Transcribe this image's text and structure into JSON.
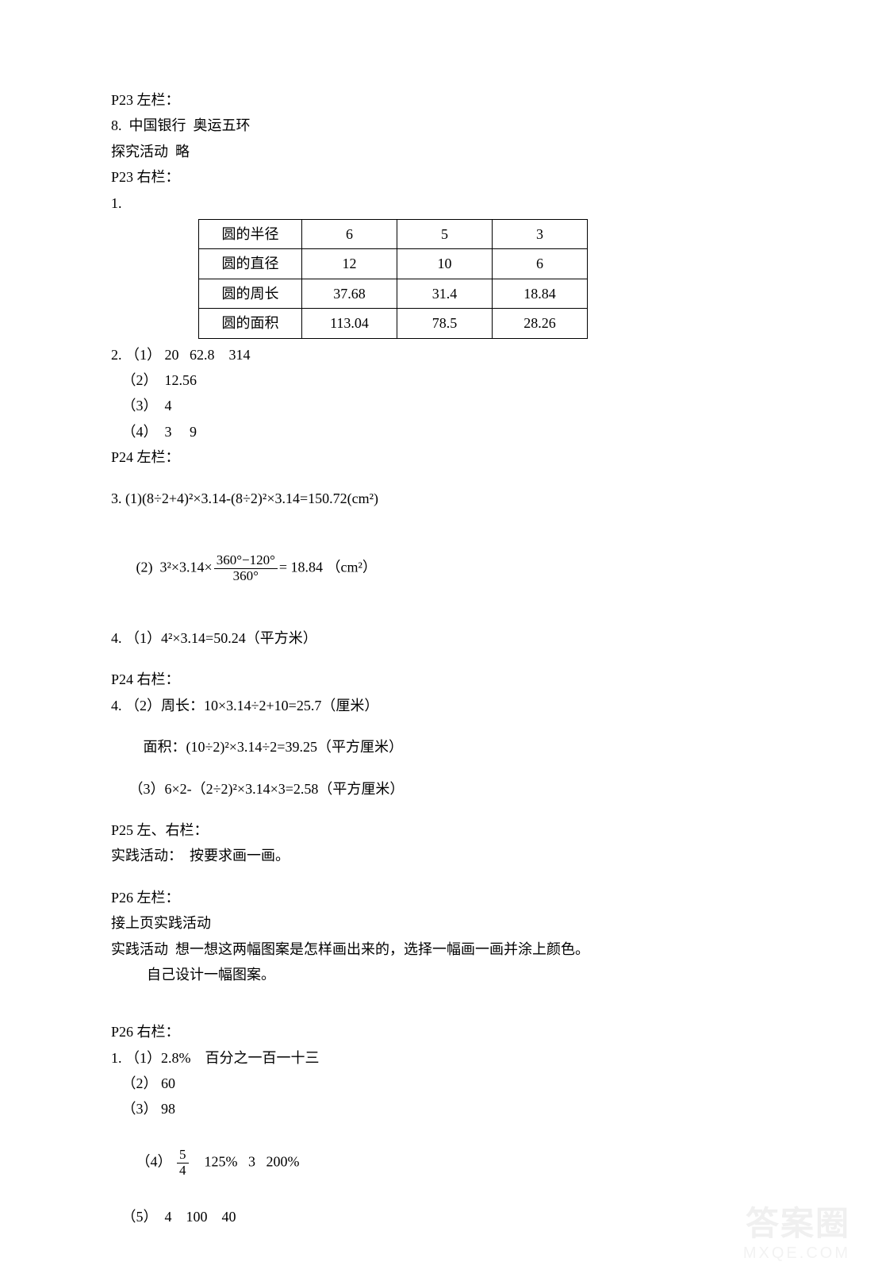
{
  "p23_left": {
    "heading": "P23 左栏：",
    "item8": "8.  中国银行  奥运五环",
    "tanjiuhuodong": "探究活动  略"
  },
  "p23_right": {
    "heading": "P23 右栏：",
    "item1_label": "1.",
    "table": {
      "rows": [
        {
          "label": "圆的半径",
          "v1": "6",
          "v2": "5",
          "v3": "3"
        },
        {
          "label": "圆的直径",
          "v1": "12",
          "v2": "10",
          "v3": "6"
        },
        {
          "label": "圆的周长",
          "v1": "37.68",
          "v2": "31.4",
          "v3": "18.84"
        },
        {
          "label": "圆的面积",
          "v1": "113.04",
          "v2": "78.5",
          "v3": "28.26"
        }
      ]
    },
    "item2": {
      "l1": "2. （1） 20   62.8    314",
      "l2": "   （2）  12.56",
      "l3": "   （3）  4",
      "l4": "   （4）  3     9"
    }
  },
  "p24_left": {
    "heading": "P24 左栏：",
    "item3_1": "3. (1)(8÷2+4)²×3.14-(8÷2)²×3.14=150.72(cm²)",
    "item3_2a": "   (2)  3²×3.14×",
    "item3_2_num": "360°−120°",
    "item3_2_den": "360°",
    "item3_2b": "= 18.84 （cm²）",
    "item4_1": "4. （1）4²×3.14=50.24（平方米）"
  },
  "p24_right": {
    "heading": "P24 右栏：",
    "item4_2a": "4. （2）周长：10×3.14÷2+10=25.7（厘米）",
    "item4_2b": "         面积：(10÷2)²×3.14÷2=39.25（平方厘米）",
    "item4_3": "     （3）6×2-（2÷2)²×3.14×3=2.58（平方厘米）"
  },
  "p25": {
    "heading": "P25 左、右栏：",
    "line": "实践活动：  按要求画一画。"
  },
  "p26_left": {
    "heading": "P26 左栏：",
    "l1": "接上页实践活动",
    "l2": "实践活动  想一想这两幅图案是怎样画出来的，选择一幅画一画并涂上颜色。",
    "l3": "          自己设计一幅图案。"
  },
  "p26_right": {
    "heading": "P26 右栏：",
    "l1": "1. （1）2.8%    百分之一百一十三",
    "l2": "   （2） 60",
    "l3": "   （3） 98",
    "l4a": "   （4） ",
    "l4_num": "5",
    "l4_den": "4",
    "l4b": "    125%   3   200%",
    "l5": "   （5）  4    100    40"
  },
  "watermark": {
    "main": "答案圈",
    "url": "MXQE.COM"
  }
}
